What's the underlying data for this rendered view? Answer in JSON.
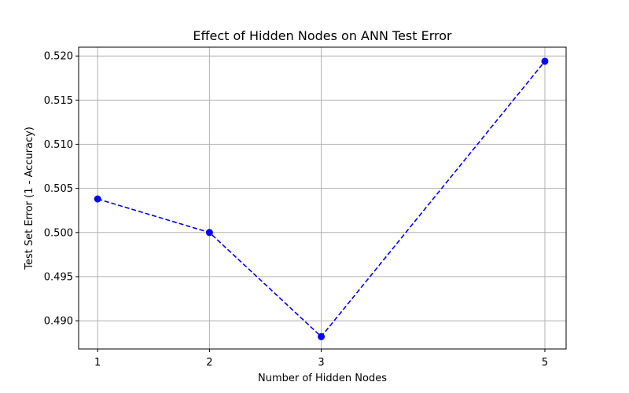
{
  "chart_data": {
    "type": "line",
    "title": "Effect of Hidden Nodes on ANN Test Error",
    "xlabel": "Number of Hidden Nodes",
    "ylabel": "Test Set Error (1 - Accuracy)",
    "x": [
      1,
      2,
      3,
      5
    ],
    "y": [
      0.5038,
      0.5,
      0.4882,
      0.5194
    ],
    "xticks": [
      "1",
      "2",
      "3",
      "5"
    ],
    "yticks": [
      "0.490",
      "0.495",
      "0.500",
      "0.505",
      "0.510",
      "0.515",
      "0.520"
    ],
    "xlim": [
      0.83,
      5.19
    ],
    "ylim": [
      0.4868,
      0.521
    ],
    "grid": true,
    "line_style": "dashed",
    "marker": "circle",
    "color": "#0000ff"
  }
}
